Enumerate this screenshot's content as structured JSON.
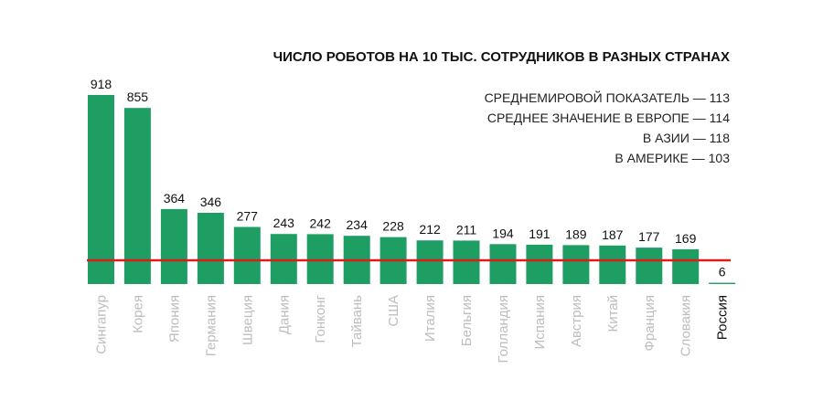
{
  "colors": {
    "bar": "#1f9e63",
    "reference_line": "#e01b1b",
    "category_label": "#bdbdbd",
    "category_label_highlight": "#111111"
  },
  "chart_data": {
    "type": "bar",
    "title": "ЧИСЛО РОБОТОВ НА 10 ТЫС. СОТРУДНИКОВ В РАЗНЫХ СТРАНАХ",
    "annotations": [
      "СРЕДНЕМИРОВОЙ ПОКАЗАТЕЛЬ — 113",
      "СРЕДНЕЕ ЗНАЧЕНИЕ В ЕВРОПЕ — 114",
      "В АЗИИ — 118",
      "В АМЕРИКЕ — 103"
    ],
    "categories": [
      "Сингапур",
      "Корея",
      "Япония",
      "Германия",
      "Швеция",
      "Дания",
      "Гонконг",
      "Тайвань",
      "США",
      "Италия",
      "Бельгия",
      "Голландия",
      "Испания",
      "Австрия",
      "Китай",
      "Франция",
      "Словакия",
      "Россия"
    ],
    "values": [
      918,
      855,
      364,
      346,
      277,
      243,
      242,
      234,
      228,
      212,
      211,
      194,
      191,
      189,
      187,
      177,
      169,
      6
    ],
    "highlight_category": "Россия",
    "reference_line": 113,
    "ylim": [
      0,
      918
    ],
    "grid": false,
    "xlabel": "",
    "ylabel": ""
  }
}
